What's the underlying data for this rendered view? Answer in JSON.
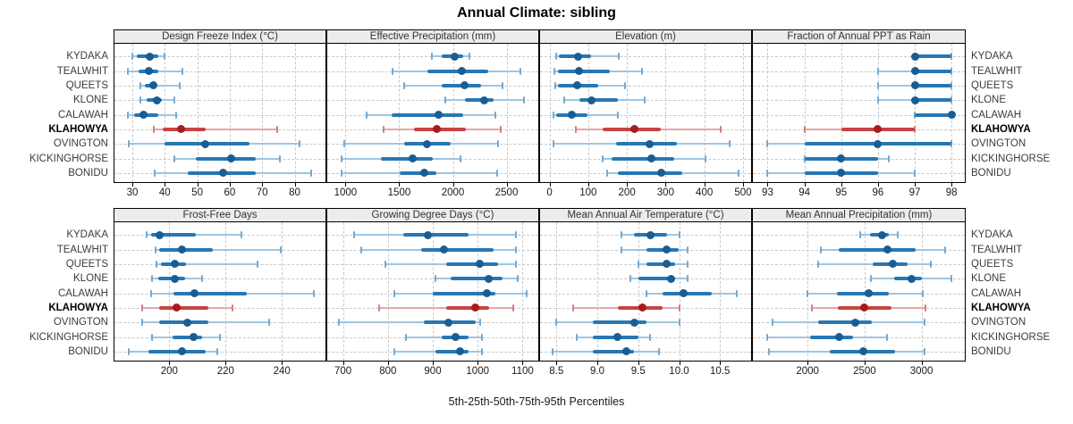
{
  "title": "Annual Climate: sibling",
  "caption": "5th-25th-50th-75th-95th Percentiles",
  "stations": [
    {
      "name": "KYDAKA",
      "highlight": false
    },
    {
      "name": "TEALWHIT",
      "highlight": false
    },
    {
      "name": "QUEETS",
      "highlight": false
    },
    {
      "name": "KLONE",
      "highlight": false
    },
    {
      "name": "CALAWAH",
      "highlight": false
    },
    {
      "name": "KLAHOWYA",
      "highlight": true
    },
    {
      "name": "OVINGTON",
      "highlight": false
    },
    {
      "name": "KICKINGHORSE",
      "highlight": false
    },
    {
      "name": "BONIDU",
      "highlight": false
    }
  ],
  "colors": {
    "blue_light": "#9fc6e2",
    "blue_cap": "#74a9d1",
    "blue_main": "#2777b4",
    "blue_dot": "#185d94",
    "red_light": "#e3a8a8",
    "red_cap": "#d47f7f",
    "red_main": "#c64444",
    "red_dot": "#a61c1c",
    "strip_bg": "#ececec",
    "grid": "#c9c9c9",
    "border": "#000000"
  },
  "chart_data": [
    {
      "type": "dotplot-percentiles",
      "key": "design-freeze-index",
      "title": "Design Freeze Index (°C)",
      "xlim": [
        24.5,
        89.5
      ],
      "ticks": [
        30,
        40,
        50,
        60,
        70,
        80
      ],
      "tick_labels": [
        "30",
        "40",
        "50",
        "60",
        "70",
        "80"
      ],
      "percentile_levels": [
        5,
        25,
        50,
        75,
        95
      ],
      "rows": [
        [
          30,
          31.5,
          35.5,
          38,
          40
        ],
        [
          28.5,
          32,
          35,
          38,
          45.5
        ],
        [
          32.5,
          34,
          36.5,
          37.5,
          44.5
        ],
        [
          32.5,
          34.5,
          37.5,
          39,
          43
        ],
        [
          28.5,
          30.5,
          33.5,
          38,
          43.5
        ],
        [
          36.5,
          39.5,
          45,
          52.5,
          74.5
        ],
        [
          29,
          40,
          52.5,
          66,
          81.5
        ],
        [
          43,
          49.5,
          60.5,
          68,
          75.5
        ],
        [
          37,
          47,
          58,
          68,
          85
        ]
      ]
    },
    {
      "type": "dotplot-percentiles",
      "key": "effective-precipitation",
      "title": "Effective Precipitation (mm)",
      "xlim": [
        830,
        2795
      ],
      "ticks": [
        1000,
        1500,
        2000,
        2500
      ],
      "tick_labels": [
        "1000",
        "1500",
        "2000",
        "2500"
      ],
      "percentile_levels": [
        5,
        25,
        50,
        75,
        95
      ],
      "rows": [
        [
          1805,
          1895,
          2015,
          2095,
          2155
        ],
        [
          1440,
          1765,
          2080,
          2330,
          2630
        ],
        [
          1545,
          1895,
          2105,
          2260,
          2465
        ],
        [
          1925,
          2115,
          2290,
          2380,
          2665
        ],
        [
          1200,
          1430,
          1870,
          2095,
          2395
        ],
        [
          1355,
          1640,
          1850,
          2120,
          2445
        ],
        [
          990,
          1550,
          1760,
          1980,
          2420
        ],
        [
          960,
          1330,
          1625,
          1815,
          2070
        ],
        [
          960,
          1505,
          1730,
          1845,
          2415
        ]
      ]
    },
    {
      "type": "dotplot-percentiles",
      "key": "elevation",
      "title": "Elevation (m)",
      "xlim": [
        -24.5,
        521
      ],
      "ticks": [
        0,
        100,
        200,
        300,
        400,
        500
      ],
      "tick_labels": [
        "0",
        "100",
        "200",
        "300",
        "400",
        "500"
      ],
      "percentile_levels": [
        5,
        25,
        50,
        75,
        95
      ],
      "rows": [
        [
          18,
          24,
          73,
          107,
          178
        ],
        [
          12,
          21,
          77,
          155,
          240
        ],
        [
          15,
          21,
          72,
          125,
          195
        ],
        [
          39,
          77,
          109,
          176,
          245
        ],
        [
          10,
          18,
          58,
          98,
          177
        ],
        [
          69,
          138,
          220,
          287,
          443
        ],
        [
          10,
          173,
          258,
          329,
          466
        ],
        [
          138,
          161,
          264,
          322,
          404
        ],
        [
          148,
          176,
          288,
          343,
          489
        ]
      ]
    },
    {
      "type": "dotplot-percentiles",
      "key": "fraction-annual-ppt-as-rain",
      "title": "Fraction of Annual PPT as Rain",
      "xlim": [
        92.6,
        98.36
      ],
      "ticks": [
        93,
        94,
        95,
        96,
        97,
        98
      ],
      "tick_labels": [
        "93",
        "94",
        "95",
        "96",
        "97",
        "98"
      ],
      "percentile_levels": [
        5,
        25,
        50,
        75,
        95
      ],
      "rows": [
        [
          97,
          97,
          97,
          98,
          98
        ],
        [
          96,
          97,
          97,
          98,
          98
        ],
        [
          96,
          97,
          97,
          98,
          98
        ],
        [
          96,
          97,
          97,
          98,
          98
        ],
        [
          97,
          97,
          98,
          98,
          98
        ],
        [
          94,
          95,
          96,
          97,
          97
        ],
        [
          93,
          94,
          96,
          98,
          98
        ],
        [
          94,
          94,
          95,
          96,
          96.3
        ],
        [
          93,
          94,
          95,
          96,
          97
        ]
      ]
    },
    {
      "type": "dotplot-percentiles",
      "key": "frost-free-days",
      "title": "Frost-Free Days",
      "xlim": [
        180.5,
        255.5
      ],
      "ticks": [
        200,
        220,
        240
      ],
      "tick_labels": [
        "200",
        "220",
        "240"
      ],
      "percentile_levels": [
        5,
        25,
        50,
        75,
        95
      ],
      "rows": [
        [
          192,
          193.5,
          196.5,
          209.5,
          225.5
        ],
        [
          195,
          196.5,
          204.5,
          215.5,
          239.5
        ],
        [
          195.5,
          197,
          202,
          206,
          231.5
        ],
        [
          194,
          196,
          202,
          205.5,
          211.5
        ],
        [
          193.5,
          201.5,
          209,
          227.5,
          251.5
        ],
        [
          190.5,
          196.5,
          202.5,
          214,
          222.5
        ],
        [
          190.5,
          196.5,
          206.5,
          214,
          235.5
        ],
        [
          194,
          201,
          208.5,
          211.5,
          218
        ],
        [
          185.5,
          192.5,
          204.5,
          213,
          217
        ]
      ]
    },
    {
      "type": "dotplot-percentiles",
      "key": "growing-degree-days",
      "title": "Growing Degree Days (°C)",
      "xlim": [
        665,
        1135
      ],
      "ticks": [
        700,
        800,
        900,
        1000,
        1100
      ],
      "tick_labels": [
        "700",
        "800",
        "900",
        "1000",
        "1100"
      ],
      "percentile_levels": [
        5,
        25,
        50,
        75,
        95
      ],
      "rows": [
        [
          725,
          835,
          890,
          980,
          1085
        ],
        [
          740,
          875,
          925,
          1035,
          1085
        ],
        [
          795,
          930,
          1005,
          1045,
          1085
        ],
        [
          905,
          940,
          1025,
          1055,
          1090
        ],
        [
          815,
          900,
          1020,
          1040,
          1110
        ],
        [
          780,
          930,
          995,
          1025,
          1080
        ],
        [
          690,
          880,
          935,
          995,
          1005
        ],
        [
          840,
          920,
          950,
          980,
          1010
        ],
        [
          815,
          905,
          960,
          980,
          1010
        ]
      ]
    },
    {
      "type": "dotplot-percentiles",
      "key": "mean-annual-air-temperature",
      "title": "Mean Annual Air Temperature (°C)",
      "xlim": [
        8.3,
        10.88
      ],
      "ticks": [
        8.5,
        9.0,
        9.5,
        10.0,
        10.5
      ],
      "tick_labels": [
        "8.5",
        "9.0",
        "9.5",
        "10.0",
        "10.5"
      ],
      "percentile_levels": [
        5,
        25,
        50,
        75,
        95
      ],
      "rows": [
        [
          9.3,
          9.45,
          9.65,
          9.85,
          10.0
        ],
        [
          9.3,
          9.6,
          9.85,
          10.0,
          10.1
        ],
        [
          9.5,
          9.6,
          9.85,
          9.95,
          10.1
        ],
        [
          9.4,
          9.5,
          9.9,
          9.95,
          10.1
        ],
        [
          9.6,
          9.8,
          10.05,
          10.4,
          10.7
        ],
        [
          8.7,
          9.25,
          9.55,
          9.8,
          10.0
        ],
        [
          8.5,
          8.95,
          9.45,
          9.6,
          10.0
        ],
        [
          8.75,
          8.95,
          9.25,
          9.5,
          9.65
        ],
        [
          8.45,
          8.95,
          9.35,
          9.45,
          9.75
        ]
      ]
    },
    {
      "type": "dotplot-percentiles",
      "key": "mean-annual-precipitation",
      "title": "Mean Annual Precipitation (mm)",
      "xlim": [
        1520,
        3380
      ],
      "ticks": [
        2000,
        2500,
        3000
      ],
      "tick_labels": [
        "2000",
        "2500",
        "3000"
      ],
      "percentile_levels": [
        5,
        25,
        50,
        75,
        95
      ],
      "rows": [
        [
          2460,
          2545,
          2655,
          2715,
          2790
        ],
        [
          2120,
          2270,
          2705,
          2945,
          3210
        ],
        [
          2095,
          2575,
          2745,
          2880,
          3080
        ],
        [
          2555,
          2760,
          2915,
          3000,
          3260
        ],
        [
          2000,
          2255,
          2535,
          2715,
          3010
        ],
        [
          2040,
          2265,
          2495,
          2740,
          3035
        ],
        [
          1690,
          2095,
          2415,
          2565,
          3025
        ],
        [
          1645,
          2025,
          2275,
          2400,
          2700
        ],
        [
          1665,
          2195,
          2490,
          2765,
          3025
        ]
      ]
    }
  ]
}
